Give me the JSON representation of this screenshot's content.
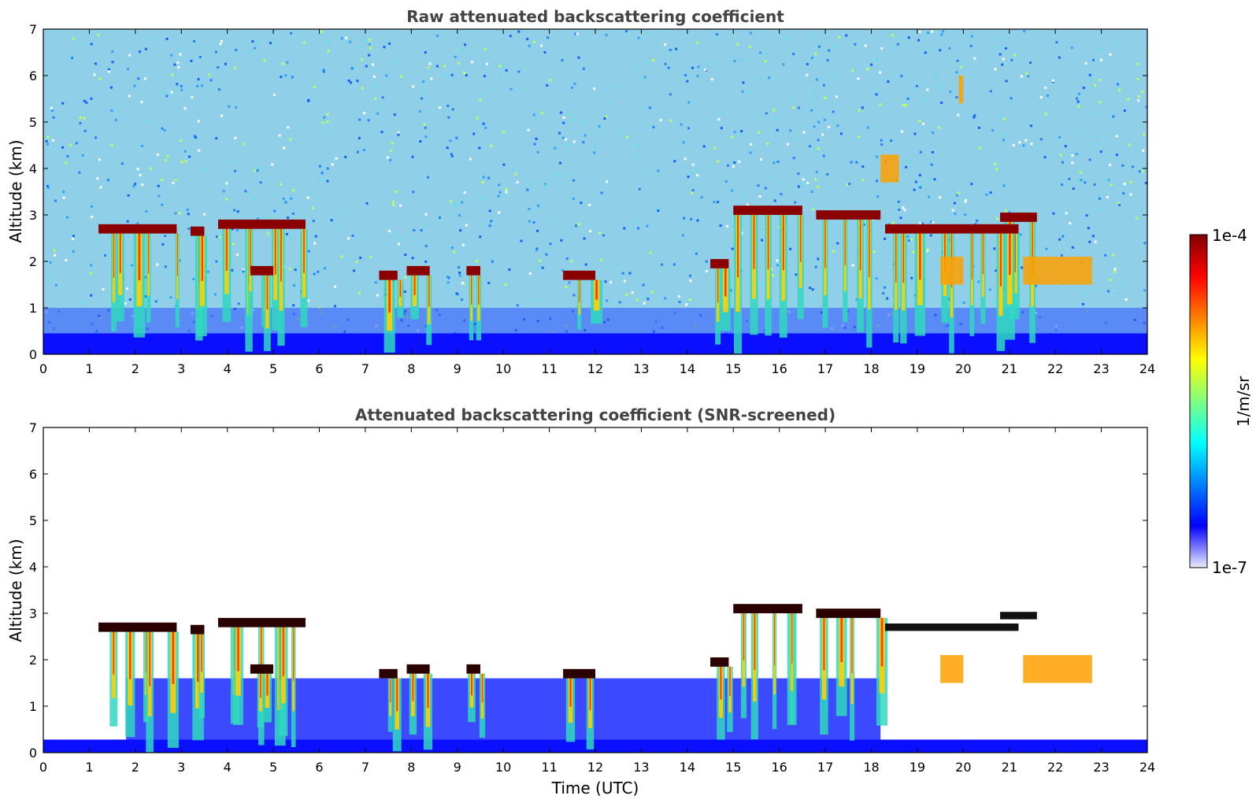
{
  "chart_data": [
    {
      "type": "heatmap",
      "title": "Raw attenuated backscattering coefficient",
      "xlabel": "",
      "ylabel": "Altitude (km)",
      "xlim": [
        0,
        24
      ],
      "ylim": [
        0,
        7
      ],
      "xticks": [
        "0",
        "1",
        "2",
        "3",
        "4",
        "5",
        "6",
        "7",
        "8",
        "9",
        "10",
        "11",
        "12",
        "13",
        "14",
        "15",
        "16",
        "17",
        "18",
        "19",
        "20",
        "21",
        "22",
        "23",
        "24"
      ],
      "yticks": [
        "0",
        "1",
        "2",
        "3",
        "4",
        "5",
        "6",
        "7"
      ],
      "grid": false,
      "screened": false,
      "cloud_layers": [
        {
          "t_start": 1.2,
          "t_end": 2.9,
          "altitude_km": 2.7
        },
        {
          "t_start": 3.2,
          "t_end": 3.5,
          "altitude_km": 2.65
        },
        {
          "t_start": 3.8,
          "t_end": 5.7,
          "altitude_km": 2.8
        },
        {
          "t_start": 4.5,
          "t_end": 5.0,
          "altitude_km": 1.8
        },
        {
          "t_start": 7.3,
          "t_end": 7.7,
          "altitude_km": 1.7
        },
        {
          "t_start": 7.9,
          "t_end": 8.4,
          "altitude_km": 1.8
        },
        {
          "t_start": 9.2,
          "t_end": 9.5,
          "altitude_km": 1.8
        },
        {
          "t_start": 11.3,
          "t_end": 12.0,
          "altitude_km": 1.7
        },
        {
          "t_start": 14.5,
          "t_end": 14.9,
          "altitude_km": 1.95
        },
        {
          "t_start": 15.0,
          "t_end": 16.5,
          "altitude_km": 3.1
        },
        {
          "t_start": 16.8,
          "t_end": 18.2,
          "altitude_km": 3.0
        },
        {
          "t_start": 18.3,
          "t_end": 21.2,
          "altitude_km": 2.7
        },
        {
          "t_start": 20.8,
          "t_end": 21.6,
          "altitude_km": 2.95
        }
      ],
      "aerosol_features": [
        {
          "t_start": 18.2,
          "t_end": 18.6,
          "altitude_km": 4.0
        },
        {
          "t_start": 19.9,
          "t_end": 20.0,
          "altitude_km": 5.7
        },
        {
          "t_start": 21.3,
          "t_end": 22.8,
          "altitude_km": 1.8
        },
        {
          "t_start": 19.5,
          "t_end": 20.0,
          "altitude_km": 1.8
        }
      ]
    },
    {
      "type": "heatmap",
      "title": "Attenuated backscattering coefficient (SNR-screened)",
      "xlabel": "Time (UTC)",
      "ylabel": "Altitude (km)",
      "xlim": [
        0,
        24
      ],
      "ylim": [
        0,
        7
      ],
      "xticks": [
        "0",
        "1",
        "2",
        "3",
        "4",
        "5",
        "6",
        "7",
        "8",
        "9",
        "10",
        "11",
        "12",
        "13",
        "14",
        "15",
        "16",
        "17",
        "18",
        "19",
        "20",
        "21",
        "22",
        "23",
        "24"
      ],
      "yticks": [
        "0",
        "1",
        "2",
        "3",
        "4",
        "5",
        "6",
        "7"
      ],
      "grid": false,
      "screened": true
    }
  ],
  "colorbar": {
    "label": "1/m/sr",
    "max_label": "1e-4",
    "min_label": "1e-7",
    "scale": "log",
    "colormap": [
      "#ececff",
      "#0000ff",
      "#0080ff",
      "#00ffff",
      "#80ff80",
      "#ffff00",
      "#ff8000",
      "#ff0000",
      "#800000"
    ]
  }
}
